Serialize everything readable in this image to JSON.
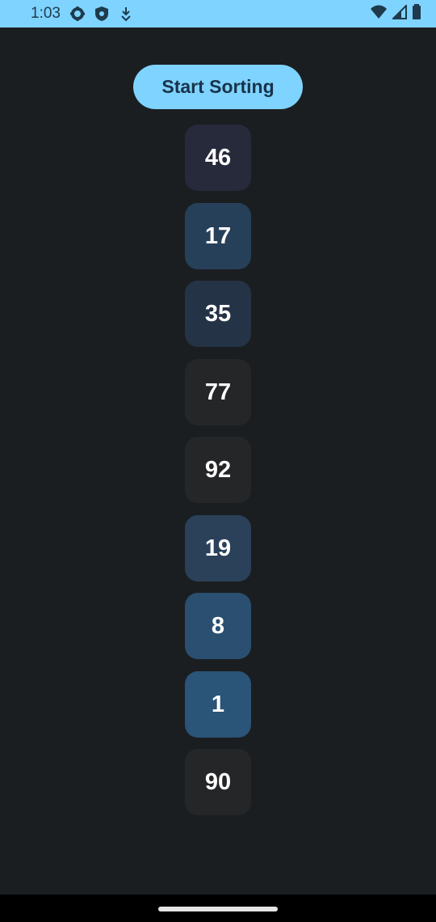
{
  "status_bar": {
    "time": "1:03",
    "icons": [
      "gear-icon",
      "shield-icon",
      "download-icon",
      "wifi-icon",
      "signal-icon",
      "battery-icon"
    ],
    "color": "#7fd3ff"
  },
  "main": {
    "start_button_label": "Start Sorting",
    "tiles": [
      {
        "value": "46",
        "color": "#262a3b"
      },
      {
        "value": "17",
        "color": "#27405a"
      },
      {
        "value": "35",
        "color": "#253346"
      },
      {
        "value": "77",
        "color": "#252627"
      },
      {
        "value": "92",
        "color": "#252627"
      },
      {
        "value": "19",
        "color": "#2a4159"
      },
      {
        "value": "8",
        "color": "#2a4f71"
      },
      {
        "value": "1",
        "color": "#2a5478"
      },
      {
        "value": "90",
        "color": "#252627"
      }
    ]
  }
}
